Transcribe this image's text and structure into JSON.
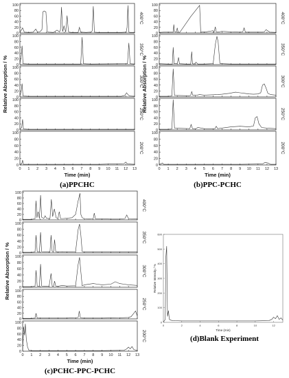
{
  "chart_data": [
    {
      "id": "a",
      "type": "line",
      "caption": "(a)PPCHC",
      "xlabel": "Time (min)",
      "ylabel": "Relative Absorption / %",
      "xlim": [
        0,
        13
      ],
      "ylim": [
        0,
        100
      ],
      "xticks": [
        "0",
        "1",
        "2",
        "3",
        "4",
        "5",
        "6",
        "7",
        "8",
        "9",
        "10",
        "11",
        "12",
        "13"
      ],
      "yticks": [
        "0",
        "20",
        "40",
        "60",
        "80",
        "100"
      ],
      "series": [
        {
          "temperature": "400°C",
          "x": [
            0,
            0.3,
            0.5,
            1,
            1.5,
            1.8,
            2,
            2.3,
            2.5,
            2.6,
            2.75,
            2.95,
            3.1,
            3.3,
            3.8,
            4.2,
            4.5,
            4.6,
            4.72,
            4.85,
            5.0,
            5.2,
            5.35,
            5.5,
            5.6,
            5.8,
            6.4,
            6.6,
            6.75,
            6.9,
            7.5,
            8.1,
            8.2,
            8.32,
            8.45,
            8.8,
            10,
            11.5,
            12.05,
            12.15,
            12.25,
            12.35,
            12.5,
            13
          ],
          "y": [
            2,
            18,
            3,
            2,
            3,
            14,
            3,
            5,
            12,
            75,
            78,
            75,
            4,
            3,
            2,
            10,
            4,
            12,
            92,
            5,
            25,
            3,
            62,
            5,
            3,
            2,
            2,
            2,
            20,
            3,
            2,
            3,
            8,
            95,
            3,
            2,
            2,
            2,
            3,
            20,
            98,
            3,
            2,
            2
          ]
        },
        {
          "temperature": "350°C",
          "x": [
            0,
            0.15,
            0.25,
            0.35,
            1,
            3,
            6.9,
            7.05,
            7.2,
            8,
            12.2,
            12.35,
            12.5,
            13
          ],
          "y": [
            2,
            30,
            65,
            3,
            2,
            2,
            2,
            95,
            3,
            2,
            3,
            75,
            3,
            2
          ]
        },
        {
          "temperature": "300°C",
          "x": [
            0,
            0.15,
            0.25,
            0.35,
            1,
            3,
            6,
            9,
            11.5,
            11.9,
            12.1,
            12.3,
            12.5,
            13
          ],
          "y": [
            2,
            20,
            45,
            3,
            2,
            2,
            2,
            2,
            2,
            5,
            14,
            6,
            3,
            2
          ]
        },
        {
          "temperature": "250°C",
          "x": [
            0,
            0.2,
            0.3,
            0.4,
            1,
            5,
            9,
            12,
            13
          ],
          "y": [
            2,
            8,
            35,
            3,
            2,
            2,
            2,
            2,
            2
          ]
        },
        {
          "temperature": "200°C",
          "x": [
            0,
            0.2,
            0.3,
            0.4,
            1,
            5,
            9,
            11.8,
            12,
            12.2,
            13
          ],
          "y": [
            2,
            3,
            15,
            2,
            2,
            2,
            2,
            4,
            9,
            3,
            2
          ]
        }
      ]
    },
    {
      "id": "b",
      "type": "line",
      "caption": "(b)PPC-PCHC",
      "xlabel": "Time (min)",
      "ylabel": "Relative Absorption / %",
      "xlim": [
        0,
        13
      ],
      "ylim": [
        0,
        100
      ],
      "xticks": [
        "0",
        "1",
        "2",
        "3",
        "4",
        "5",
        "6",
        "7",
        "8",
        "9",
        "10",
        "11",
        "12",
        "13"
      ],
      "yticks": [
        "0",
        "20",
        "40",
        "60",
        "80",
        "100"
      ],
      "series": [
        {
          "temperature": "400°C",
          "x": [
            0,
            0.5,
            1,
            1.5,
            1.55,
            1.62,
            1.7,
            1.9,
            2,
            2.1,
            2.2,
            2.3,
            3.5,
            4.5,
            4.62,
            4.7,
            4.8,
            5,
            6,
            6.1,
            6.25,
            6.35,
            6.5,
            7,
            8,
            9,
            9.3,
            9.45,
            9.6,
            10,
            10.8,
            11.5,
            11.7,
            11.9,
            12.3,
            13
          ],
          "y": [
            2,
            3,
            3,
            3,
            3,
            30,
            5,
            3,
            18,
            3,
            2,
            3,
            58,
            98,
            2,
            3,
            4,
            3,
            8,
            3,
            22,
            4,
            3,
            6,
            4,
            3,
            4,
            18,
            3,
            3,
            3,
            3,
            4,
            12,
            3,
            2
          ]
        },
        {
          "temperature": "350°C",
          "x": [
            0,
            1,
            1.45,
            1.55,
            1.65,
            1.8,
            2,
            2.15,
            2.25,
            3,
            3.5,
            3.62,
            3.7,
            3.9,
            4.1,
            4.3,
            5,
            6,
            6.25,
            6.42,
            6.55,
            6.75,
            6.9,
            7,
            8,
            9,
            10,
            11,
            12,
            13
          ],
          "y": [
            3,
            2,
            2,
            60,
            3,
            3,
            3,
            25,
            3,
            2,
            2,
            45,
            3,
            2,
            8,
            2,
            2,
            3,
            70,
            98,
            80,
            4,
            3,
            3,
            2,
            2,
            2,
            2,
            2,
            2
          ]
        },
        {
          "temperature": "300°C",
          "x": [
            0,
            1,
            1.4,
            1.55,
            1.7,
            3.3,
            3.5,
            3.62,
            3.75,
            4.2,
            4.5,
            5,
            6.5,
            7,
            7.8,
            8.5,
            9,
            9.5,
            10,
            10.5,
            11,
            11.3,
            11.5,
            11.7,
            11.9,
            12.1,
            12.4,
            13
          ],
          "y": [
            2,
            2,
            3,
            95,
            5,
            4,
            5,
            18,
            5,
            6,
            8,
            6,
            8,
            9,
            12,
            16,
            14,
            12,
            10,
            9,
            10,
            14,
            40,
            44,
            30,
            12,
            8,
            6
          ]
        },
        {
          "temperature": "250°C",
          "x": [
            0,
            1,
            1.4,
            1.55,
            1.7,
            3.4,
            3.55,
            3.7,
            4.1,
            4.3,
            5,
            6.2,
            6.35,
            6.5,
            8,
            9,
            10,
            10.5,
            10.7,
            10.9,
            11.1,
            11.4,
            12,
            13
          ],
          "y": [
            2,
            2,
            3,
            100,
            6,
            4,
            18,
            4,
            4,
            8,
            4,
            4,
            12,
            4,
            10,
            12,
            10,
            13,
            40,
            44,
            20,
            8,
            6,
            4
          ]
        },
        {
          "temperature": "200°C",
          "x": [
            0,
            0.2,
            0.35,
            0.5,
            1,
            5,
            9,
            11.5,
            11.8,
            12.1,
            12.4,
            13
          ],
          "y": [
            2,
            3,
            6,
            2,
            2,
            2,
            2,
            3,
            8,
            6,
            2,
            2
          ]
        }
      ]
    },
    {
      "id": "c",
      "type": "line",
      "caption": "(c)PCHC-PPC-PCHC",
      "xlabel": "Time (min)",
      "ylabel": "Relative Absorption / %",
      "xlim": [
        0,
        13
      ],
      "ylim": [
        0,
        100
      ],
      "xticks": [
        "0",
        "1",
        "2",
        "3",
        "4",
        "5",
        "6",
        "7",
        "8",
        "9",
        "10",
        "11",
        "12",
        "13"
      ],
      "yticks": [
        "0",
        "20",
        "40",
        "60",
        "80",
        "100"
      ],
      "series": [
        {
          "temperature": "400°C",
          "x": [
            0,
            1,
            1.4,
            1.52,
            1.62,
            1.75,
            1.9,
            2.03,
            2.15,
            2.4,
            2.55,
            2.7,
            3.1,
            3.25,
            3.4,
            3.6,
            3.8,
            4,
            4.15,
            4.3,
            4.6,
            5,
            5.6,
            6,
            6.3,
            6.5,
            6.6,
            6.75,
            7,
            7.5,
            8,
            8.12,
            8.25,
            9,
            10,
            11,
            11.6,
            11.8,
            12,
            13
          ],
          "y": [
            2,
            2,
            4,
            70,
            8,
            30,
            5,
            90,
            10,
            5,
            15,
            6,
            5,
            75,
            12,
            40,
            8,
            5,
            30,
            5,
            5,
            6,
            8,
            20,
            70,
            97,
            20,
            8,
            5,
            4,
            5,
            25,
            4,
            4,
            3,
            3,
            5,
            18,
            5,
            3
          ]
        },
        {
          "temperature": "350°C",
          "x": [
            0,
            1,
            1.4,
            1.52,
            1.65,
            1.9,
            2.03,
            2.15,
            3,
            3.1,
            3.22,
            3.35,
            3.5,
            3.62,
            3.75,
            4,
            4.5,
            5,
            6,
            6.3,
            6.45,
            6.6,
            6.75,
            7,
            8,
            9,
            10,
            11,
            12,
            13
          ],
          "y": [
            2,
            2,
            3,
            60,
            4,
            3,
            70,
            4,
            3,
            3,
            60,
            5,
            3,
            45,
            4,
            3,
            4,
            3,
            4,
            80,
            98,
            60,
            5,
            3,
            3,
            3,
            3,
            3,
            3,
            3
          ]
        },
        {
          "temperature": "300°C",
          "x": [
            0,
            1,
            1.4,
            1.52,
            1.65,
            1.9,
            2.03,
            2.15,
            3,
            3.22,
            3.35,
            3.5,
            3.62,
            3.75,
            4,
            4.5,
            5,
            6,
            6.3,
            6.45,
            6.6,
            6.75,
            7,
            8,
            8.5,
            9,
            10,
            10.5,
            11,
            11.5,
            12,
            13
          ],
          "y": [
            2,
            2,
            3,
            55,
            4,
            3,
            75,
            4,
            3,
            45,
            4,
            3,
            20,
            4,
            3,
            6,
            4,
            5,
            75,
            97,
            50,
            5,
            8,
            12,
            10,
            8,
            10,
            18,
            12,
            10,
            8,
            6
          ]
        },
        {
          "temperature": "250°C",
          "x": [
            0,
            1,
            1.4,
            1.52,
            1.65,
            3,
            4,
            5,
            6,
            6.3,
            6.42,
            6.55,
            6.8,
            7,
            9,
            11,
            12,
            12.3,
            12.6,
            12.8,
            13
          ],
          "y": [
            2,
            2,
            3,
            20,
            3,
            3,
            3,
            3,
            4,
            5,
            28,
            4,
            3,
            3,
            3,
            4,
            5,
            8,
            20,
            28,
            10
          ]
        },
        {
          "temperature": "200°C",
          "x": [
            0,
            0.12,
            0.22,
            0.3,
            0.42,
            0.55,
            0.7,
            1,
            5,
            9,
            11.5,
            11.8,
            12,
            12.2,
            12.4,
            12.6,
            13
          ],
          "y": [
            2,
            85,
            55,
            95,
            40,
            15,
            3,
            2,
            2,
            2,
            3,
            8,
            14,
            8,
            16,
            6,
            2
          ]
        }
      ]
    },
    {
      "id": "d",
      "type": "line",
      "caption": "(d)Blank Experiment",
      "xlabel": "Time (min)",
      "ylabel": "Relative Intensity / %",
      "xlim": [
        0,
        13
      ],
      "ylim": [
        0,
        600
      ],
      "xticks": [
        "0",
        "2",
        "4",
        "6",
        "8",
        "10",
        "12"
      ],
      "yticks": [
        "0",
        "100",
        "200",
        "300",
        "400",
        "500",
        "600"
      ],
      "series": [
        {
          "temperature": "",
          "x": [
            0,
            0.1,
            0.2,
            0.28,
            0.36,
            0.45,
            0.55,
            0.65,
            0.8,
            1,
            2,
            4,
            6,
            8,
            10,
            11.5,
            11.8,
            12,
            12.2,
            12.4,
            12.6,
            12.8,
            13
          ],
          "y": [
            5,
            10,
            20,
            450,
            520,
            40,
            80,
            20,
            15,
            12,
            10,
            10,
            10,
            10,
            10,
            12,
            20,
            35,
            25,
            45,
            20,
            30,
            15
          ]
        }
      ]
    }
  ]
}
